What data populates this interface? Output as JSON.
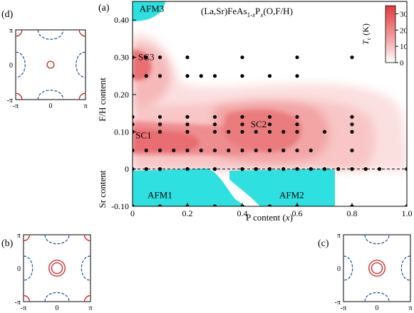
{
  "panel_labels": {
    "a": "(a)",
    "b": "(b)",
    "c": "(c)",
    "d": "(d)"
  },
  "chart_data": {
    "type": "heatmap",
    "title": "(La,Sr)FeAs1-xPx(O,F/H)",
    "xlabel": "P content (x)",
    "ylabel_upper": "F/H content",
    "ylabel_lower": "Sr content",
    "xlim": [
      0,
      1.0
    ],
    "ylim": [
      -0.1,
      0.45
    ],
    "x_ticks": [
      0,
      0.2,
      0.4,
      0.6,
      0.8,
      1.0
    ],
    "x_tick_labels": [
      "0",
      "0.2",
      "0.4",
      "0.6",
      "0.8",
      "1.0"
    ],
    "y_ticks": [
      -0.1,
      0,
      0.1,
      0.2,
      0.3,
      0.4
    ],
    "y_tick_labels": [
      "-0.10",
      "0",
      "0.10",
      "0.20",
      "0.30",
      "0.40"
    ],
    "colorbar": {
      "label": "Tc (K)",
      "min": 0,
      "max": 35,
      "ticks": [
        0,
        10,
        20,
        30
      ],
      "colors": [
        "#ffffff",
        "#e03a3e"
      ]
    },
    "regions": [
      {
        "label": "SC1",
        "x": 0.04,
        "y": 0.09
      },
      {
        "label": "SC2",
        "x": 0.46,
        "y": 0.12
      },
      {
        "label": "SC3",
        "x": 0.05,
        "y": 0.3
      },
      {
        "label": "AFM1",
        "x": 0.1,
        "y": -0.07
      },
      {
        "label": "AFM2",
        "x": 0.58,
        "y": -0.07
      },
      {
        "label": "AFM3",
        "x": 0.07,
        "y": 0.43
      }
    ],
    "points": [
      [
        0,
        0.3
      ],
      [
        0.05,
        0.3
      ],
      [
        0.1,
        0.3
      ],
      [
        0.2,
        0.3
      ],
      [
        0.4,
        0.3
      ],
      [
        0.6,
        0.3
      ],
      [
        0.8,
        0.3
      ],
      [
        0,
        0.25
      ],
      [
        0.05,
        0.25
      ],
      [
        0.1,
        0.25
      ],
      [
        0.2,
        0.25
      ],
      [
        0.25,
        0.25
      ],
      [
        0.3,
        0.25
      ],
      [
        0.4,
        0.25
      ],
      [
        0.5,
        0.25
      ],
      [
        0.6,
        0.25
      ],
      [
        0,
        0.14
      ],
      [
        0.1,
        0.14
      ],
      [
        0.2,
        0.14
      ],
      [
        0.3,
        0.14
      ],
      [
        0.4,
        0.14
      ],
      [
        0.5,
        0.14
      ],
      [
        0.6,
        0.14
      ],
      [
        0.8,
        0.14
      ],
      [
        0,
        0.12
      ],
      [
        0.1,
        0.12
      ],
      [
        0.2,
        0.12
      ],
      [
        0.3,
        0.12
      ],
      [
        0.4,
        0.12
      ],
      [
        0.5,
        0.12
      ],
      [
        0.6,
        0.12
      ],
      [
        0.8,
        0.12
      ],
      [
        0,
        0.1
      ],
      [
        0.1,
        0.1
      ],
      [
        0.2,
        0.1
      ],
      [
        0.3,
        0.1
      ],
      [
        0.35,
        0.1
      ],
      [
        0.4,
        0.1
      ],
      [
        0.45,
        0.1
      ],
      [
        0.5,
        0.1
      ],
      [
        0.55,
        0.1
      ],
      [
        0.6,
        0.1
      ],
      [
        0.7,
        0.1
      ],
      [
        0.8,
        0.1
      ],
      [
        0,
        0.05
      ],
      [
        0.05,
        0.05
      ],
      [
        0.1,
        0.05
      ],
      [
        0.15,
        0.05
      ],
      [
        0.2,
        0.05
      ],
      [
        0.25,
        0.05
      ],
      [
        0.3,
        0.05
      ],
      [
        0.35,
        0.05
      ],
      [
        0.4,
        0.05
      ],
      [
        0.45,
        0.05
      ],
      [
        0.5,
        0.05
      ],
      [
        0.55,
        0.05
      ],
      [
        0.6,
        0.05
      ],
      [
        0.65,
        0.05
      ],
      [
        0.8,
        0.05
      ],
      [
        0,
        0.0
      ],
      [
        0.05,
        0.0
      ],
      [
        0.1,
        0.0
      ],
      [
        0.2,
        0.0
      ],
      [
        0.3,
        0.0
      ],
      [
        0.4,
        0.0
      ],
      [
        0.45,
        0.0
      ],
      [
        0.5,
        0.0
      ],
      [
        0.55,
        0.0
      ],
      [
        0.6,
        0.0
      ],
      [
        0.65,
        0.0
      ],
      [
        0.7,
        0.0
      ],
      [
        0.75,
        0.0
      ],
      [
        0.8,
        0.0
      ],
      [
        0.85,
        0.0
      ],
      [
        0.9,
        0.0
      ],
      [
        1.0,
        0.0
      ],
      [
        0,
        -0.1
      ],
      [
        0.1,
        -0.1
      ],
      [
        0.2,
        -0.1
      ],
      [
        0.3,
        -0.1
      ],
      [
        0.4,
        -0.1
      ],
      [
        0.5,
        -0.1
      ],
      [
        0.6,
        -0.1
      ],
      [
        0.8,
        -0.1
      ],
      [
        1.0,
        -0.1
      ]
    ]
  },
  "fermi_panels": {
    "b": {
      "x_tick_labels": [
        "-π",
        "0",
        "π"
      ],
      "y_tick_labels": [
        "-π",
        "0",
        "π"
      ],
      "hole_rings": 2
    },
    "c": {
      "x_tick_labels": [
        "-π",
        "0",
        "π"
      ],
      "y_tick_labels": [
        "-π",
        "0",
        "π"
      ],
      "hole_rings": 2
    },
    "d": {
      "x_tick_labels": [
        "-π",
        "0",
        "π"
      ],
      "y_tick_labels": [
        "-π",
        "0",
        "π"
      ],
      "hole_rings": 1
    }
  }
}
